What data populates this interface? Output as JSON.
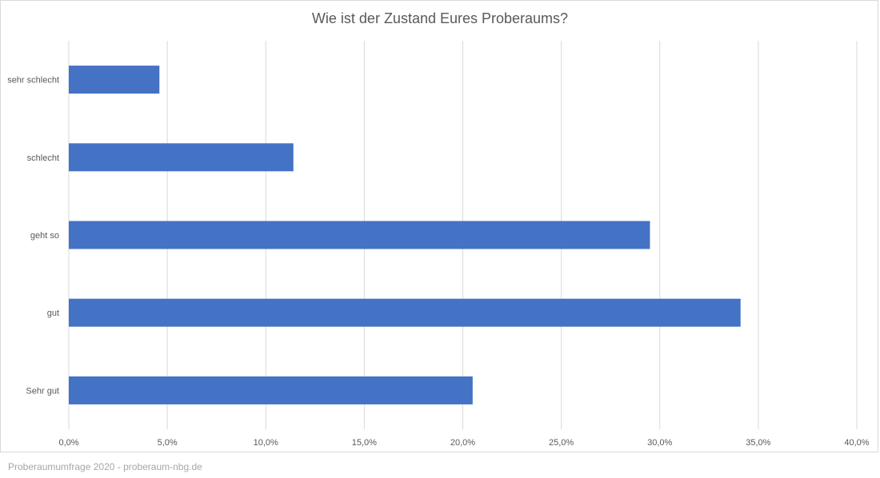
{
  "chart_data": {
    "type": "bar",
    "orientation": "horizontal",
    "title": "Wie ist der Zustand Eures Proberaums?",
    "categories": [
      "sehr schlecht",
      "schlecht",
      "geht so",
      "gut",
      "Sehr gut"
    ],
    "values": [
      4.6,
      11.4,
      29.5,
      34.1,
      20.5
    ],
    "xlim": [
      0,
      40
    ],
    "x_ticks": [
      0,
      5,
      10,
      15,
      20,
      25,
      30,
      35,
      40
    ],
    "x_tick_labels": [
      "0,0%",
      "5,0%",
      "10,0%",
      "15,0%",
      "20,0%",
      "25,0%",
      "30,0%",
      "35,0%",
      "40,0%"
    ],
    "grid": "vertical",
    "bar_color": "#4472c4"
  },
  "footer": "Proberaumumfrage 2020 - proberaum-nbg.de"
}
